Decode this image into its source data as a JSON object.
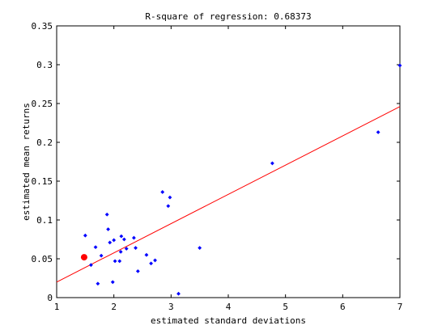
{
  "chart_data": {
    "type": "scatter",
    "title": "R-square of regression: 0.68373",
    "xlabel": "estimated standard deviations",
    "ylabel": "estimated mean returns",
    "xlim": [
      1,
      7
    ],
    "ylim": [
      0,
      0.35
    ],
    "xticks": [
      1,
      2,
      3,
      4,
      5,
      6,
      7
    ],
    "yticks": [
      0,
      0.05,
      0.1,
      0.15,
      0.2,
      0.25,
      0.3,
      0.35
    ],
    "xtick_labels": [
      "1",
      "2",
      "3",
      "4",
      "5",
      "6",
      "7"
    ],
    "ytick_labels": [
      "0",
      "0.05",
      "0.1",
      "0.15",
      "0.2",
      "0.25",
      "0.3",
      "0.35"
    ],
    "grid": false,
    "series": [
      {
        "kind": "scatter",
        "color": "#0000ff",
        "points": [
          [
            1.5,
            0.08
          ],
          [
            1.6,
            0.042
          ],
          [
            1.68,
            0.065
          ],
          [
            1.72,
            0.018
          ],
          [
            1.78,
            0.054
          ],
          [
            1.88,
            0.107
          ],
          [
            1.9,
            0.088
          ],
          [
            1.93,
            0.071
          ],
          [
            1.98,
            0.02
          ],
          [
            2.0,
            0.074
          ],
          [
            2.02,
            0.047
          ],
          [
            2.1,
            0.047
          ],
          [
            2.12,
            0.059
          ],
          [
            2.13,
            0.079
          ],
          [
            2.18,
            0.075
          ],
          [
            2.22,
            0.063
          ],
          [
            2.35,
            0.077
          ],
          [
            2.38,
            0.064
          ],
          [
            2.42,
            0.034
          ],
          [
            2.57,
            0.055
          ],
          [
            2.65,
            0.044
          ],
          [
            2.72,
            0.048
          ],
          [
            2.85,
            0.136
          ],
          [
            2.95,
            0.118
          ],
          [
            2.98,
            0.129
          ],
          [
            3.13,
            0.005
          ],
          [
            3.5,
            0.064
          ],
          [
            4.77,
            0.173
          ],
          [
            6.62,
            0.213
          ],
          [
            7.0,
            0.299
          ]
        ]
      },
      {
        "kind": "highlight",
        "color": "#ff0000",
        "points": [
          [
            1.48,
            0.052
          ]
        ]
      },
      {
        "kind": "regression-line",
        "color": "#ff0000",
        "points": [
          [
            1.0,
            0.02
          ],
          [
            7.0,
            0.246
          ]
        ]
      }
    ]
  }
}
